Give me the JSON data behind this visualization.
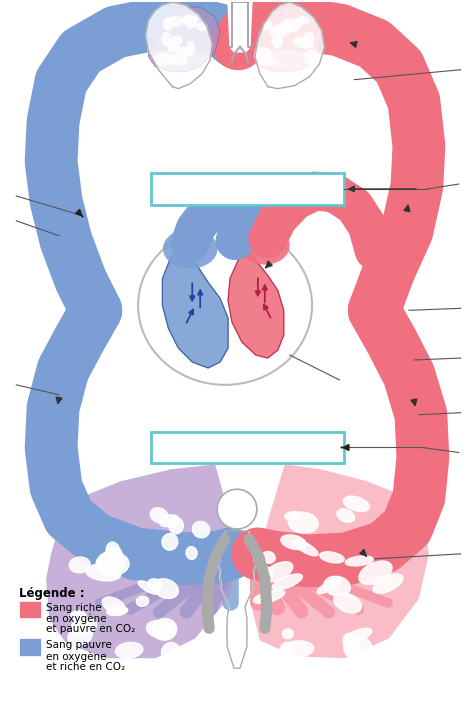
{
  "background_color": "#ffffff",
  "blue_color": "#7b9fd4",
  "red_color": "#f07080",
  "blue_light": "#a0b8e8",
  "red_light": "#f8a0b0",
  "purple_color": "#b090c8",
  "cyan_box_color": "#60c8d0",
  "legend_title": "Légende :",
  "legend_red_lines": [
    "Sang riche",
    "en oxygène",
    "et pauvre en CO₂"
  ],
  "legend_blue_lines": [
    "Sang pauvre",
    "en oxygène",
    "et riche en CO₂"
  ],
  "figsize": [
    4.74,
    7.23
  ],
  "dpi": 100
}
